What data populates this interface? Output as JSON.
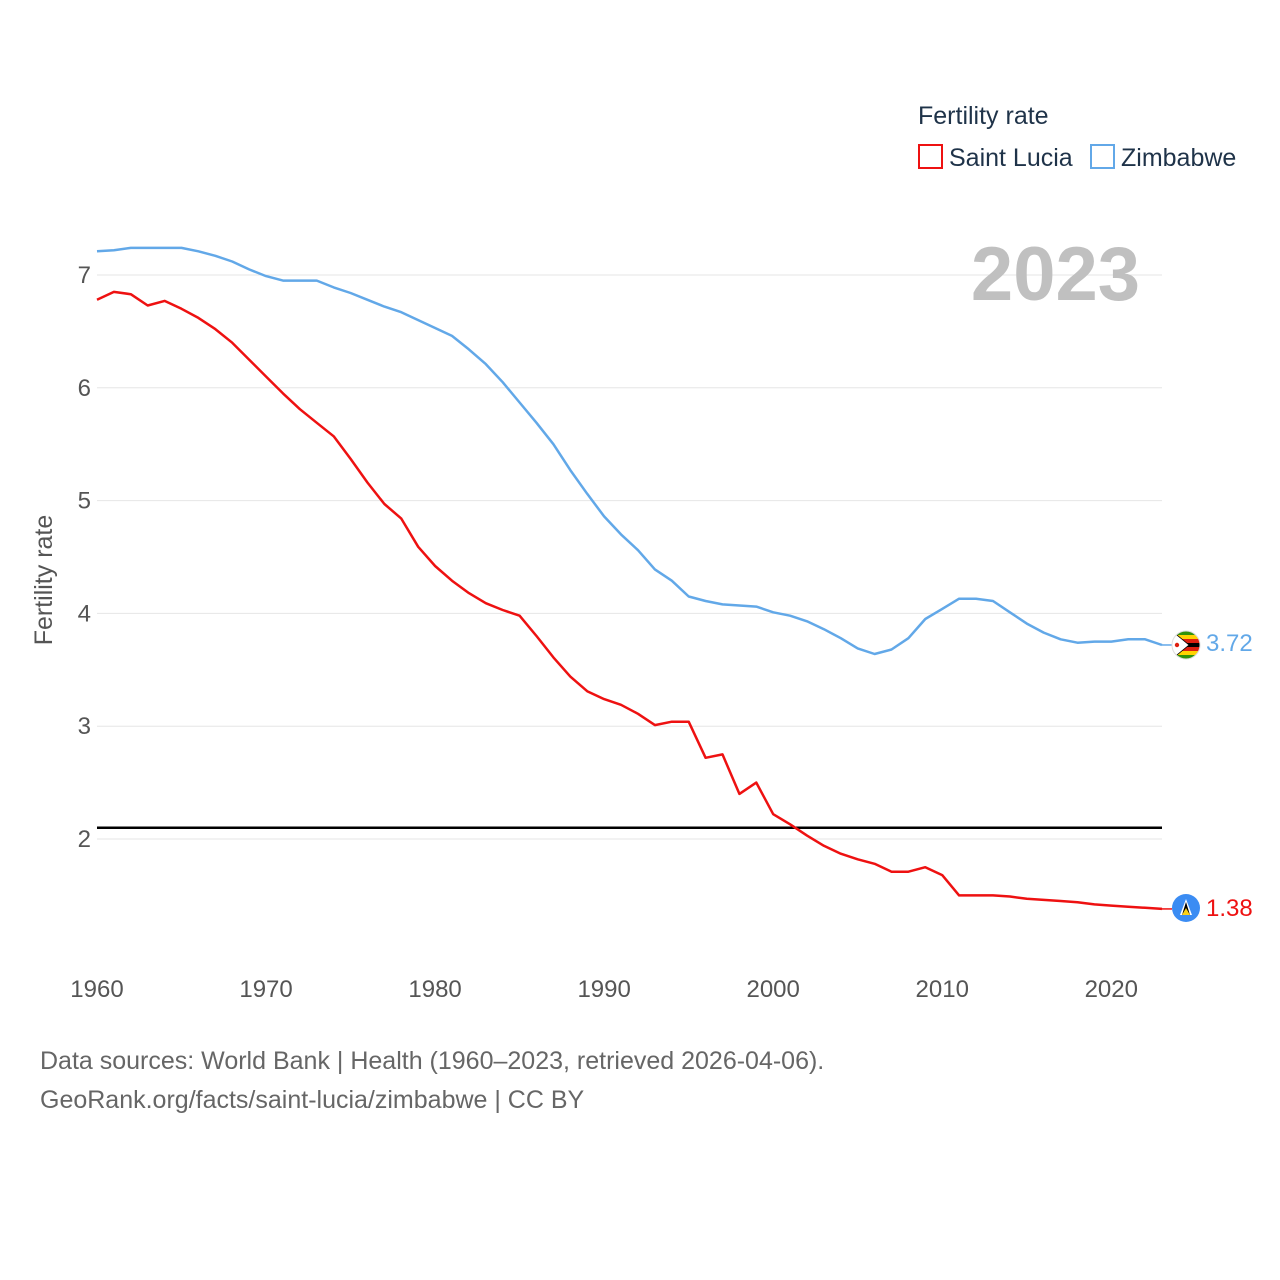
{
  "chart_data": {
    "type": "line",
    "legend_title": "Fertility rate",
    "legend_position": "top-right",
    "ylabel": "Fertility rate",
    "year_label": "2023",
    "xlim": [
      1960,
      2023
    ],
    "ylim": [
      1,
      7.5
    ],
    "x_ticks": [
      1960,
      1970,
      1980,
      1990,
      2000,
      2010,
      2020
    ],
    "y_ticks": [
      2,
      3,
      4,
      5,
      6,
      7
    ],
    "reference_line": 2.1,
    "x": [
      1960,
      1961,
      1962,
      1963,
      1964,
      1965,
      1966,
      1967,
      1968,
      1969,
      1970,
      1971,
      1972,
      1973,
      1974,
      1975,
      1976,
      1977,
      1978,
      1979,
      1980,
      1981,
      1982,
      1983,
      1984,
      1985,
      1986,
      1987,
      1988,
      1989,
      1990,
      1991,
      1992,
      1993,
      1994,
      1995,
      1996,
      1997,
      1998,
      1999,
      2000,
      2001,
      2002,
      2003,
      2004,
      2005,
      2006,
      2007,
      2008,
      2009,
      2010,
      2011,
      2012,
      2013,
      2014,
      2015,
      2016,
      2017,
      2018,
      2019,
      2020,
      2021,
      2022,
      2023
    ],
    "series": [
      {
        "name": "Saint Lucia",
        "color": "#ee1111",
        "end_label": "1.38",
        "flag_icon": "saint-lucia-flag-icon",
        "values": [
          6.78,
          6.85,
          6.83,
          6.73,
          6.77,
          6.7,
          6.62,
          6.52,
          6.4,
          6.25,
          6.1,
          5.95,
          5.81,
          5.69,
          5.57,
          5.37,
          5.16,
          4.97,
          4.84,
          4.59,
          4.42,
          4.29,
          4.18,
          4.09,
          4.03,
          3.98,
          3.8,
          3.61,
          3.44,
          3.31,
          3.24,
          3.19,
          3.11,
          3.01,
          3.04,
          3.04,
          2.72,
          2.75,
          2.4,
          2.5,
          2.22,
          2.13,
          2.03,
          1.94,
          1.87,
          1.82,
          1.78,
          1.71,
          1.71,
          1.75,
          1.68,
          1.5,
          1.5,
          1.5,
          1.49,
          1.47,
          1.46,
          1.45,
          1.44,
          1.42,
          1.41,
          1.4,
          1.39,
          1.38
        ]
      },
      {
        "name": "Zimbabwe",
        "color": "#62a8e8",
        "end_label": "3.72",
        "flag_icon": "zimbabwe-flag-icon",
        "values": [
          7.21,
          7.22,
          7.24,
          7.24,
          7.24,
          7.24,
          7.21,
          7.17,
          7.12,
          7.05,
          6.99,
          6.95,
          6.95,
          6.95,
          6.89,
          6.84,
          6.78,
          6.72,
          6.67,
          6.6,
          6.53,
          6.46,
          6.34,
          6.21,
          6.05,
          5.87,
          5.69,
          5.5,
          5.27,
          5.06,
          4.86,
          4.7,
          4.56,
          4.39,
          4.29,
          4.15,
          4.11,
          4.08,
          4.07,
          4.06,
          4.01,
          3.98,
          3.93,
          3.86,
          3.78,
          3.69,
          3.64,
          3.68,
          3.78,
          3.95,
          4.04,
          4.13,
          4.13,
          4.11,
          4.01,
          3.91,
          3.83,
          3.77,
          3.74,
          3.75,
          3.75,
          3.77,
          3.77,
          3.72
        ]
      }
    ]
  },
  "source": {
    "line1": "Data sources: World Bank | Health (1960–2023, retrieved 2026-04-06).",
    "line2": "GeoRank.org/facts/saint-lucia/zimbabwe | CC BY"
  }
}
